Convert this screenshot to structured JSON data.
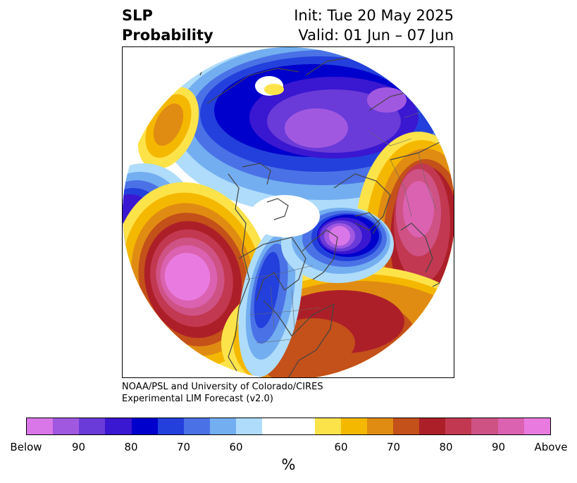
{
  "title": {
    "left_line1": "SLP",
    "left_line2": "Probability",
    "right_line1": "Init: Tue 20 May 2025",
    "right_line2": "Valid: 01 Jun – 07 Jun"
  },
  "credit": {
    "line1": "NOAA/PSL and University of Colorado/CIRES",
    "line2": "Experimental LIM Forecast (v2.0)"
  },
  "colorbar": {
    "colors": [
      "#d977e8",
      "#a158e0",
      "#6a3bd8",
      "#3a17d0",
      "#0000cc",
      "#2340dc",
      "#4a72e6",
      "#73aef0",
      "#aedcfa",
      "#ffffff",
      "#ffffff",
      "#fde34a",
      "#f5b800",
      "#e08c12",
      "#c4501a",
      "#ad1f28",
      "#c23850",
      "#cf5285",
      "#db62b0",
      "#e97be0"
    ],
    "tick_labels": [
      "Below",
      "90",
      "80",
      "70",
      "60",
      "60",
      "70",
      "80",
      "90",
      "Above"
    ],
    "unit_label": "%"
  },
  "map": {
    "projection": "north-polar-stereographic",
    "features": [
      "coastlines",
      "country-borders",
      "state-borders"
    ]
  }
}
